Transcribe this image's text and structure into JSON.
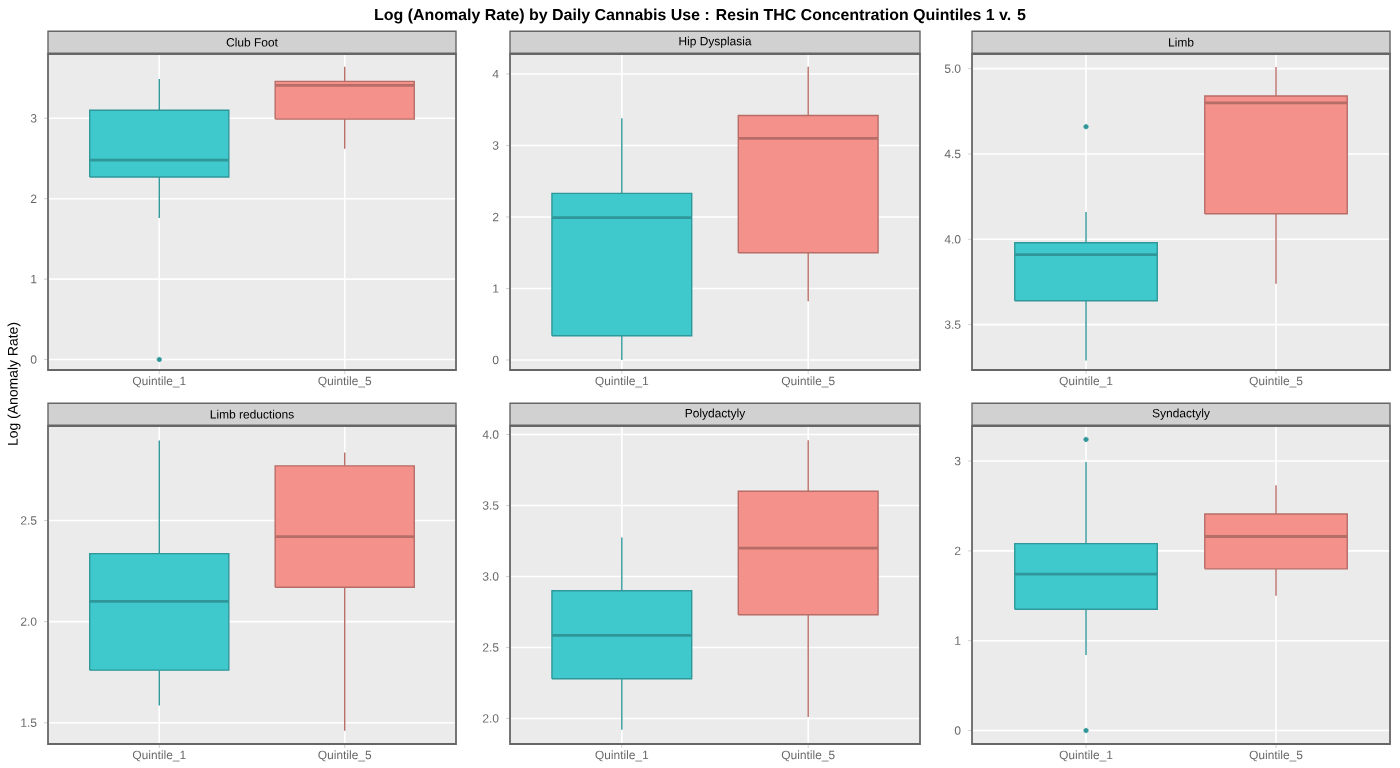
{
  "chart_data": [
    {
      "type": "other",
      "title": "Log (Anomaly Rate) by Daily Cannabis Use :  Resin THC Concentration Quintiles 1 v. 5",
      "ylabel": "Log (Anomaly Rate)"
    },
    {
      "type": "box",
      "title": "Club Foot",
      "categories": [
        "Quintile_1",
        "Quintile_5"
      ],
      "colors": [
        "#3fc9cc",
        "#f4918a"
      ],
      "ylim": [
        -0.13,
        3.8
      ],
      "yticks": [
        0,
        1,
        2,
        3
      ],
      "grid": true,
      "boxes": [
        {
          "low": 1.76,
          "q1": 2.27,
          "median": 2.48,
          "q3": 3.1,
          "high": 3.49,
          "outliers": [
            0
          ]
        },
        {
          "low": 2.62,
          "q1": 2.99,
          "median": 3.41,
          "q3": 3.46,
          "high": 3.64
        }
      ]
    },
    {
      "type": "box",
      "title": "Hip Dysplasia",
      "categories": [
        "Quintile_1",
        "Quintile_5"
      ],
      "colors": [
        "#3fc9cc",
        "#f4918a"
      ],
      "ylim": [
        -0.14,
        4.28
      ],
      "yticks": [
        0,
        1,
        2,
        3,
        4
      ],
      "grid": true,
      "boxes": [
        {
          "low": 0,
          "q1": 0.34,
          "median": 1.99,
          "q3": 2.33,
          "high": 3.38
        },
        {
          "low": 0.82,
          "q1": 1.5,
          "median": 3.1,
          "q3": 3.42,
          "high": 4.1
        }
      ]
    },
    {
      "type": "box",
      "title": "Limb",
      "categories": [
        "Quintile_1",
        "Quintile_5"
      ],
      "colors": [
        "#3fc9cc",
        "#f4918a"
      ],
      "ylim": [
        3.234,
        5.086
      ],
      "yticks": [
        3.5,
        {
          "value": 4,
          "label": "4.0"
        },
        4.5,
        {
          "value": 5,
          "label": "5.0"
        }
      ],
      "grid": true,
      "boxes": [
        {
          "low": 3.29,
          "q1": 3.64,
          "median": 3.91,
          "q3": 3.98,
          "high": 4.16,
          "outliers": [
            4.66
          ]
        },
        {
          "low": 3.74,
          "q1": 4.15,
          "median": 4.8,
          "q3": 4.84,
          "high": 5.01
        }
      ]
    },
    {
      "type": "box",
      "title": "Limb reductions",
      "categories": [
        "Quintile_1",
        "Quintile_5"
      ],
      "colors": [
        "#3fc9cc",
        "#f4918a"
      ],
      "ylim": [
        1.395,
        2.967
      ],
      "yticks": [
        1.5,
        {
          "value": 2,
          "label": "2.0"
        },
        2.5
      ],
      "grid": true,
      "boxes": [
        {
          "low": 1.585,
          "q1": 1.76,
          "median": 2.1,
          "q3": 2.336,
          "high": 2.895
        },
        {
          "low": 1.46,
          "q1": 2.17,
          "median": 2.42,
          "q3": 2.77,
          "high": 2.836
        }
      ]
    },
    {
      "type": "box",
      "title": "Polydactyly",
      "categories": [
        "Quintile_1",
        "Quintile_5"
      ],
      "colors": [
        "#3fc9cc",
        "#f4918a"
      ],
      "ylim": [
        1.82,
        4.06
      ],
      "yticks": [
        {
          "value": 2,
          "label": "2.0"
        },
        2.5,
        {
          "value": 3,
          "label": "3.0"
        },
        3.5,
        {
          "value": 4,
          "label": "4.0"
        }
      ],
      "grid": true,
      "boxes": [
        {
          "low": 1.92,
          "q1": 2.28,
          "median": 2.585,
          "q3": 2.9,
          "high": 3.275
        },
        {
          "low": 2.01,
          "q1": 2.73,
          "median": 3.2,
          "q3": 3.6,
          "high": 3.96
        }
      ]
    },
    {
      "type": "box",
      "title": "Syndactyly",
      "categories": [
        "Quintile_1",
        "Quintile_5"
      ],
      "colors": [
        "#3fc9cc",
        "#f4918a"
      ],
      "ylim": [
        -0.15,
        3.39
      ],
      "yticks": [
        0,
        1,
        2,
        3
      ],
      "grid": true,
      "boxes": [
        {
          "low": 0.84,
          "q1": 1.35,
          "median": 1.74,
          "q3": 2.08,
          "high": 2.99,
          "outliers": [
            3.24,
            0
          ]
        },
        {
          "low": 1.5,
          "q1": 1.8,
          "median": 2.16,
          "q3": 2.41,
          "high": 2.73
        }
      ]
    }
  ]
}
